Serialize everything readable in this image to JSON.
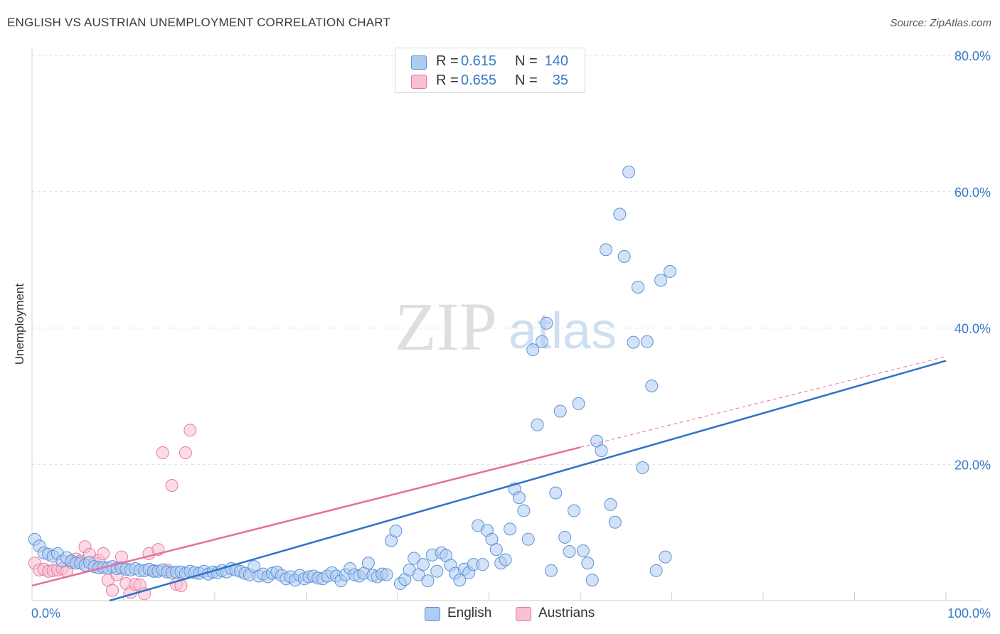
{
  "title": "ENGLISH VS AUSTRIAN UNEMPLOYMENT CORRELATION CHART",
  "source": "Source: ZipAtlas.com",
  "watermark": {
    "zip": "ZIP",
    "atlas": "atlas"
  },
  "legend": {
    "rows": [
      {
        "r_label": "R =",
        "r_value": "0.615",
        "n_label": "N =",
        "n_value": "140"
      },
      {
        "r_label": "R =",
        "r_value": "0.655",
        "n_label": "N =",
        "n_value": "35"
      }
    ]
  },
  "bottom_legend": {
    "english": "English",
    "austrians": "Austrians"
  },
  "chart_data": {
    "type": "scatter",
    "title": "ENGLISH VS AUSTRIAN UNEMPLOYMENT CORRELATION CHART",
    "xlabel": "",
    "ylabel": "Unemployment",
    "xlim": [
      0,
      100
    ],
    "ylim": [
      0,
      80
    ],
    "x_tick_labels": [
      "0.0%",
      "100.0%"
    ],
    "y_ticks": [
      20,
      40,
      60,
      80
    ],
    "y_tick_labels": [
      "20.0%",
      "40.0%",
      "60.0%",
      "80.0%"
    ],
    "grid": true,
    "legend_position": "top-center",
    "colors": {
      "english": "#5b93d9",
      "english_fill": "#aecbf0",
      "austrians": "#e87aa0",
      "austrians_fill": "#f8c0d2",
      "english_line": "#2f72c9",
      "austrians_line": "#e5709a",
      "tick_text": "#3a78c9"
    },
    "series": [
      {
        "name": "English",
        "regression": {
          "x": [
            8.5,
            100
          ],
          "y": [
            0,
            35.2
          ]
        },
        "points": [
          [
            0.3,
            9.0
          ],
          [
            0.8,
            8.0
          ],
          [
            1.3,
            7.0
          ],
          [
            1.8,
            6.8
          ],
          [
            2.3,
            6.5
          ],
          [
            2.8,
            6.9
          ],
          [
            3.3,
            5.8
          ],
          [
            3.8,
            6.3
          ],
          [
            4.3,
            5.8
          ],
          [
            4.8,
            5.5
          ],
          [
            5.3,
            5.5
          ],
          [
            5.8,
            5.2
          ],
          [
            6.3,
            5.6
          ],
          [
            6.8,
            5.0
          ],
          [
            7.3,
            4.8
          ],
          [
            7.8,
            4.9
          ],
          [
            8.3,
            4.8
          ],
          [
            8.8,
            5.0
          ],
          [
            9.3,
            4.7
          ],
          [
            9.8,
            4.8
          ],
          [
            10.3,
            4.6
          ],
          [
            10.8,
            4.5
          ],
          [
            11.3,
            4.7
          ],
          [
            11.8,
            4.4
          ],
          [
            12.3,
            4.4
          ],
          [
            12.8,
            4.6
          ],
          [
            13.3,
            4.3
          ],
          [
            13.8,
            4.3
          ],
          [
            14.3,
            4.5
          ],
          [
            14.8,
            4.2
          ],
          [
            15.3,
            4.1
          ],
          [
            15.8,
            4.2
          ],
          [
            16.3,
            4.2
          ],
          [
            16.8,
            4.0
          ],
          [
            17.3,
            4.3
          ],
          [
            17.8,
            4.1
          ],
          [
            18.3,
            4.0
          ],
          [
            18.8,
            4.3
          ],
          [
            19.3,
            3.9
          ],
          [
            19.8,
            4.2
          ],
          [
            20.3,
            4.1
          ],
          [
            20.8,
            4.4
          ],
          [
            21.3,
            4.2
          ],
          [
            21.8,
            4.7
          ],
          [
            22.3,
            4.5
          ],
          [
            22.8,
            4.3
          ],
          [
            23.3,
            4.0
          ],
          [
            23.8,
            3.8
          ],
          [
            24.3,
            5.0
          ],
          [
            24.8,
            3.6
          ],
          [
            25.3,
            3.9
          ],
          [
            25.8,
            3.5
          ],
          [
            26.3,
            4.0
          ],
          [
            26.8,
            4.2
          ],
          [
            27.3,
            3.7
          ],
          [
            27.8,
            3.2
          ],
          [
            28.3,
            3.5
          ],
          [
            28.8,
            3.0
          ],
          [
            29.3,
            3.7
          ],
          [
            29.8,
            3.2
          ],
          [
            30.3,
            3.5
          ],
          [
            30.8,
            3.6
          ],
          [
            31.3,
            3.3
          ],
          [
            31.8,
            3.2
          ],
          [
            32.3,
            3.6
          ],
          [
            32.8,
            4.1
          ],
          [
            33.3,
            3.6
          ],
          [
            33.8,
            2.9
          ],
          [
            34.3,
            3.8
          ],
          [
            34.8,
            4.7
          ],
          [
            35.3,
            3.8
          ],
          [
            35.8,
            3.6
          ],
          [
            36.3,
            4.0
          ],
          [
            36.8,
            5.5
          ],
          [
            37.3,
            3.7
          ],
          [
            37.8,
            3.5
          ],
          [
            38.3,
            3.9
          ],
          [
            38.8,
            3.8
          ],
          [
            39.3,
            8.8
          ],
          [
            39.8,
            10.2
          ],
          [
            40.3,
            2.5
          ],
          [
            40.8,
            3.1
          ],
          [
            41.3,
            4.5
          ],
          [
            41.8,
            6.2
          ],
          [
            42.3,
            3.8
          ],
          [
            42.8,
            5.3
          ],
          [
            43.3,
            2.9
          ],
          [
            43.8,
            6.7
          ],
          [
            44.3,
            4.3
          ],
          [
            44.8,
            7.0
          ],
          [
            45.3,
            6.6
          ],
          [
            45.8,
            5.2
          ],
          [
            46.3,
            4.0
          ],
          [
            46.8,
            3.0
          ],
          [
            47.3,
            4.6
          ],
          [
            47.8,
            4.1
          ],
          [
            48.3,
            5.3
          ],
          [
            48.8,
            11.0
          ],
          [
            49.3,
            5.3
          ],
          [
            49.8,
            10.3
          ],
          [
            50.3,
            9.0
          ],
          [
            50.8,
            7.5
          ],
          [
            51.3,
            5.5
          ],
          [
            51.8,
            6.0
          ],
          [
            52.3,
            10.5
          ],
          [
            52.8,
            16.4
          ],
          [
            53.3,
            15.1
          ],
          [
            53.8,
            13.2
          ],
          [
            54.3,
            9.0
          ],
          [
            54.8,
            36.8
          ],
          [
            55.3,
            25.8
          ],
          [
            55.8,
            38.0
          ],
          [
            56.3,
            40.7
          ],
          [
            56.8,
            4.4
          ],
          [
            57.3,
            15.8
          ],
          [
            57.8,
            27.8
          ],
          [
            58.3,
            9.3
          ],
          [
            58.8,
            7.2
          ],
          [
            59.3,
            13.2
          ],
          [
            59.8,
            28.9
          ],
          [
            60.3,
            7.3
          ],
          [
            60.8,
            5.5
          ],
          [
            61.3,
            3.0
          ],
          [
            61.8,
            23.4
          ],
          [
            62.3,
            22.0
          ],
          [
            62.8,
            51.5
          ],
          [
            63.3,
            14.1
          ],
          [
            63.8,
            11.5
          ],
          [
            64.3,
            56.7
          ],
          [
            64.8,
            50.5
          ],
          [
            65.3,
            62.9
          ],
          [
            65.8,
            37.9
          ],
          [
            66.3,
            46.0
          ],
          [
            66.8,
            19.5
          ],
          [
            67.3,
            38.0
          ],
          [
            67.8,
            31.5
          ],
          [
            68.3,
            4.4
          ],
          [
            68.8,
            47.0
          ],
          [
            69.3,
            6.4
          ],
          [
            69.8,
            48.3
          ]
        ]
      },
      {
        "name": "Austrians",
        "regression": {
          "x": [
            0,
            60
          ],
          "y": [
            2.2,
            22.5
          ],
          "extrapolated": {
            "x": [
              60,
              100
            ],
            "y": [
              22.5,
              35.8
            ]
          }
        },
        "points": [
          [
            0.3,
            5.5
          ],
          [
            0.8,
            4.5
          ],
          [
            1.3,
            4.6
          ],
          [
            1.8,
            4.3
          ],
          [
            2.3,
            4.4
          ],
          [
            2.8,
            4.5
          ],
          [
            3.3,
            4.7
          ],
          [
            3.8,
            4.3
          ],
          [
            4.3,
            5.6
          ],
          [
            4.8,
            6.1
          ],
          [
            5.3,
            5.8
          ],
          [
            5.8,
            7.9
          ],
          [
            6.3,
            6.8
          ],
          [
            6.8,
            5.5
          ],
          [
            7.3,
            5.9
          ],
          [
            7.8,
            6.9
          ],
          [
            8.3,
            3.0
          ],
          [
            8.8,
            1.5
          ],
          [
            9.3,
            3.8
          ],
          [
            9.8,
            6.4
          ],
          [
            10.3,
            2.5
          ],
          [
            10.8,
            1.2
          ],
          [
            11.3,
            2.4
          ],
          [
            11.8,
            2.3
          ],
          [
            12.3,
            1.0
          ],
          [
            12.8,
            6.9
          ],
          [
            13.3,
            4.4
          ],
          [
            13.8,
            7.5
          ],
          [
            14.3,
            21.7
          ],
          [
            14.8,
            4.5
          ],
          [
            15.3,
            16.9
          ],
          [
            15.8,
            2.4
          ],
          [
            16.3,
            2.2
          ],
          [
            16.8,
            21.7
          ],
          [
            17.3,
            25.0
          ]
        ]
      }
    ]
  }
}
